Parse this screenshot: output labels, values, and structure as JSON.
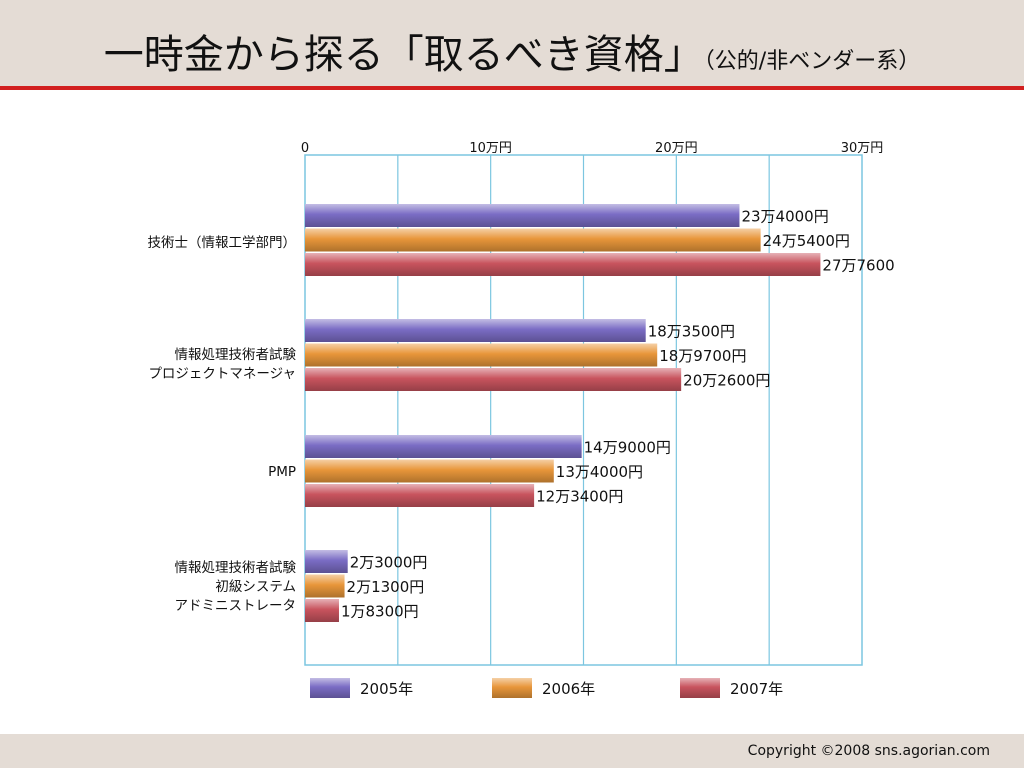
{
  "slide": {
    "title_main": "一時金から探る「取るべき資格」",
    "title_sub": "（公的/非ベンダー系）",
    "copyright": "Copyright ©2008 sns.agorian.com"
  },
  "chart_data": {
    "type": "bar",
    "orientation": "horizontal",
    "xlim": [
      0,
      300000
    ],
    "ticks": [
      {
        "value": 0,
        "label": "0"
      },
      {
        "value": 100000,
        "label": "10万円"
      },
      {
        "value": 200000,
        "label": "20万円"
      },
      {
        "value": 300000,
        "label": "30万円"
      }
    ],
    "grid": true,
    "legend_position": "bottom",
    "categories": [
      [
        "技術士（情報工学部門）"
      ],
      [
        "情報処理技術者試験",
        "プロジェクトマネージャ"
      ],
      [
        "PMP"
      ],
      [
        "情報処理技術者試験",
        "初級システム",
        "アドミニストレータ"
      ]
    ],
    "series": [
      {
        "name": "2005年",
        "color": "#7a6cc4",
        "values": [
          234000,
          183500,
          149000,
          23000
        ],
        "labels": [
          "23万4000円",
          "18万3500円",
          "14万9000円",
          "2万3000円"
        ]
      },
      {
        "name": "2006年",
        "color": "#e8963a",
        "values": [
          245400,
          189700,
          134000,
          21300
        ],
        "labels": [
          "24万5400円",
          "18万9700円",
          "13万4000円",
          "2万1300円"
        ]
      },
      {
        "name": "2007年",
        "color": "#c8545e",
        "values": [
          277600,
          202600,
          123400,
          18300
        ],
        "labels": [
          "27万7600",
          "20万2600円",
          "12万3400円",
          "1万8300円"
        ]
      }
    ]
  }
}
